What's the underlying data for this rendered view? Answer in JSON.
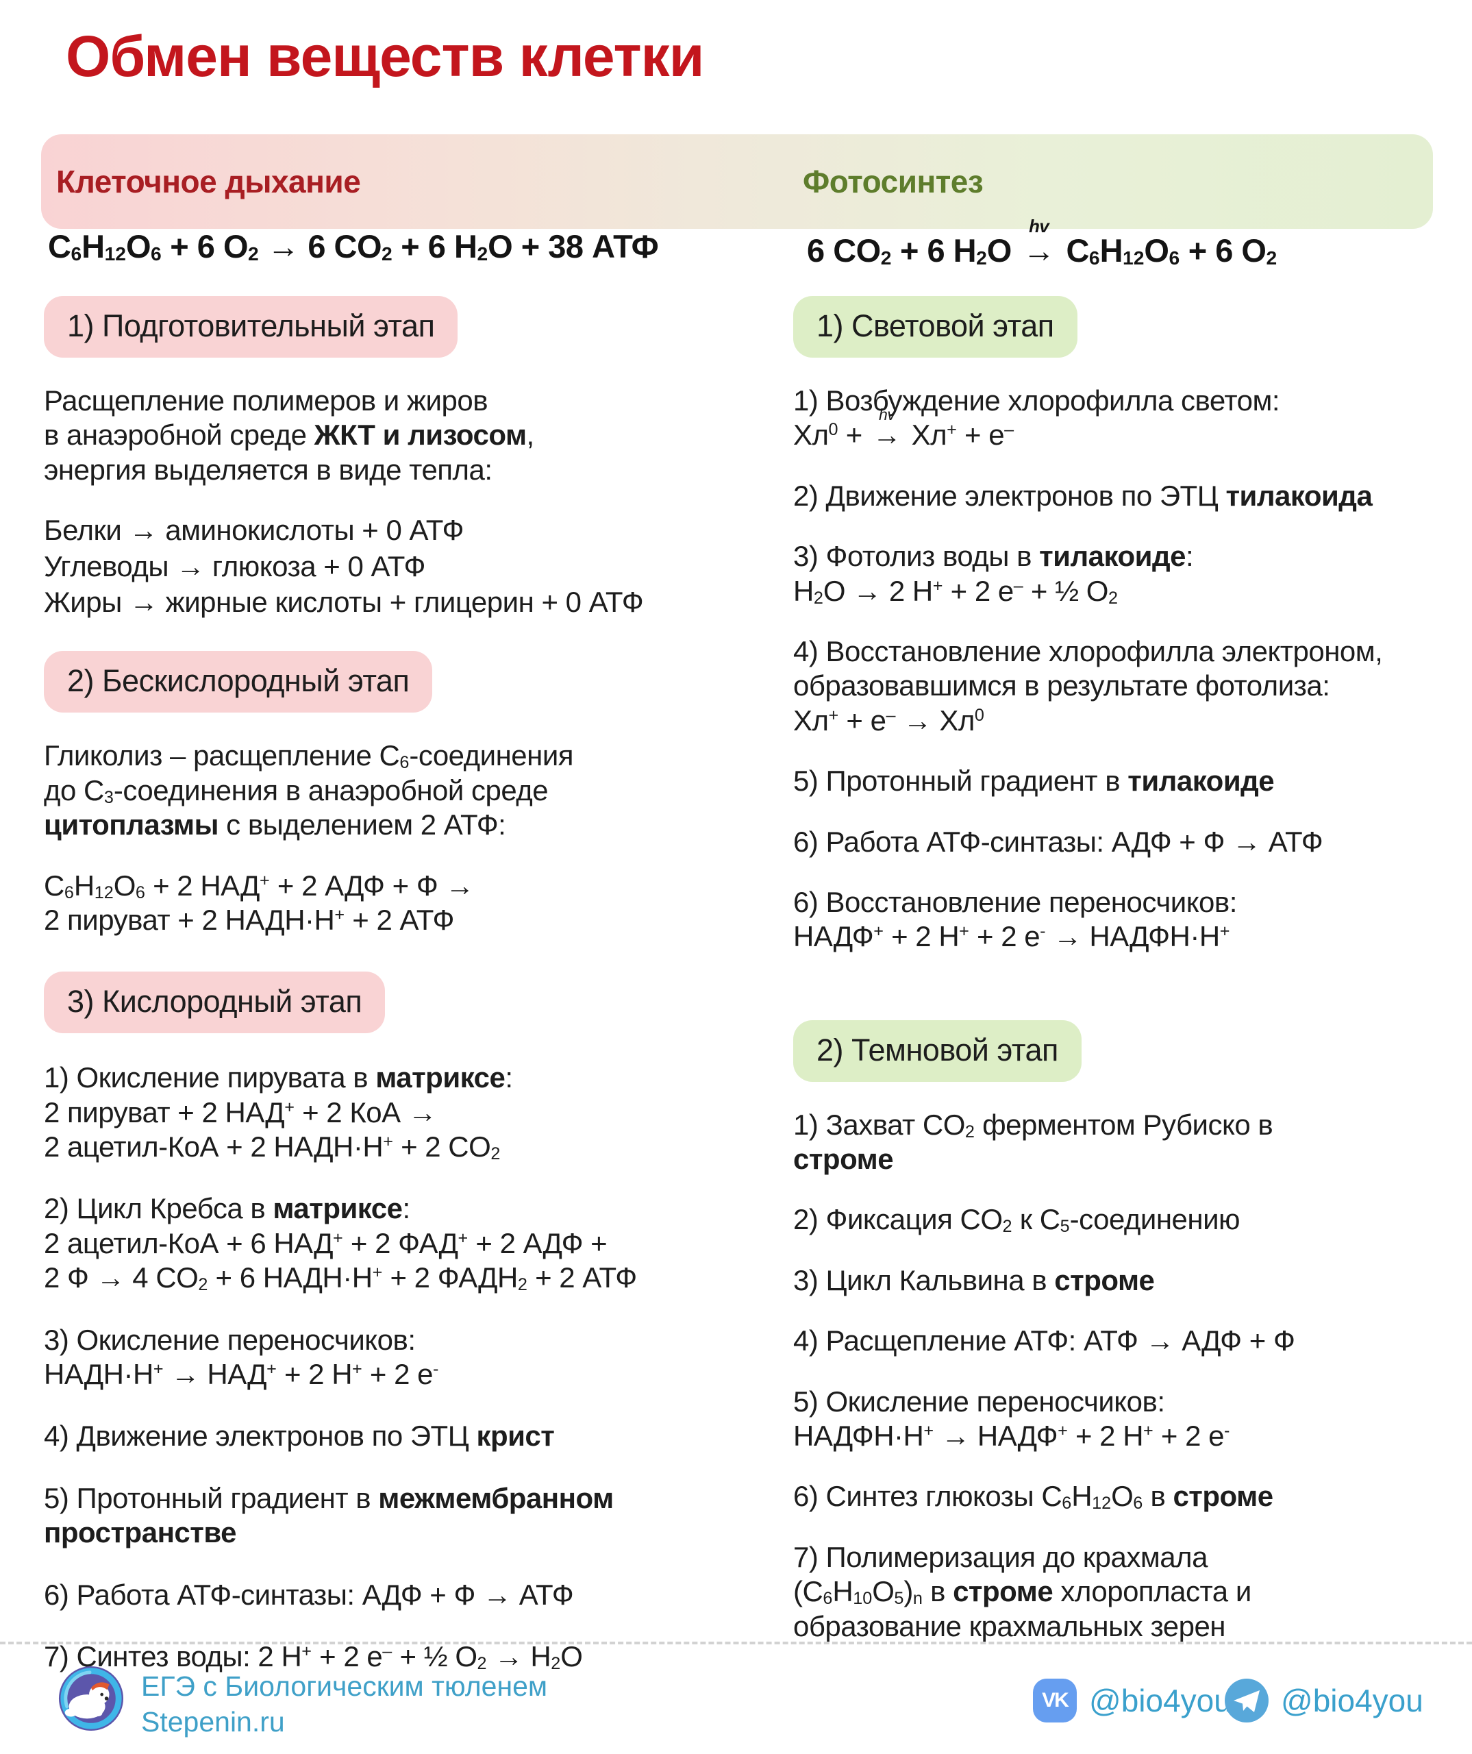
{
  "title": "Обмен веществ клетки",
  "header": {
    "respiration_label": "Клеточное дыхание",
    "photosynthesis_label": "Фотосинтез"
  },
  "respiration": {
    "equation": "C<sub>6</sub>H<sub>12</sub>O<sub>6</sub> + 6 O<sub>2</sub> → 6 CO<sub>2</sub> + 6 H<sub>2</sub>O + 38 АТФ",
    "stages": {
      "prep": {
        "badge": "1) Подготовительный этап",
        "intro": "Расщепление полимеров и жиров<br>в анаэробной среде <b>ЖКТ и лизосом</b>,<br>энергия выделяется в виде тепла:",
        "reactions": [
          "Белки → аминокислоты + 0 АТФ",
          "Углеводы → глюкоза + 0 АТФ",
          "Жиры → жирные кислоты + глицерин + 0 АТФ"
        ]
      },
      "anaerobic": {
        "badge": "2) Бескислородный этап",
        "intro": "Гликолиз – расщепление C<sub>6</sub>-соединения<br>до C<sub>3</sub>-соединения в анаэробной среде<br><b>цитоплазмы</b> с выделением 2 АТФ:",
        "formula": "C<sub>6</sub>H<sub>12</sub>O<sub>6</sub> + 2 НАД<sup>+</sup> + 2 АДФ + Ф →<br>2 пируват + 2 НАДН·Н<sup>+</sup> + 2 АТФ"
      },
      "aerobic": {
        "badge": "3) Кислородный этап",
        "items": [
          "1) Окисление пирувата в <b>матриксе</b>:<br>2 пируват + 2 НАД<sup>+</sup> + 2 КоА →<br>2 ацетил-КоА + 2 НАДН·Н<sup>+</sup> + 2 CO<sub>2</sub>",
          "2) Цикл Кребса в <b>матриксе</b>:<br>2 ацетил-КоА + 6 НАД<sup>+</sup> + 2 ФАД<sup>+</sup> + 2 АДФ +<br>2 Ф → 4 CO<sub>2</sub> + 6 НАДН·Н<sup>+</sup> + 2 ФАДН<sub>2</sub> + 2 АТФ",
          "3) Окисление переносчиков:<br>НАДН·Н<sup>+</sup> → НАД<sup>+</sup> + 2 Н<sup>+</sup> + 2 е<sup>-</sup>",
          "4) Движение электронов по ЭТЦ <b>крист</b>",
          "5) Протонный градиент в <b>межмембранном<br>пространстве</b>",
          "6) Работа АТФ-синтазы: АДФ + Ф → АТФ",
          "7) Синтез воды: 2 Н<sup>+</sup> + 2 е<sup>–</sup> + ½ O<sub>2</sub> → H<sub>2</sub>O"
        ]
      }
    }
  },
  "photosynthesis": {
    "equation": "6 CO<sub>2</sub> + 6 H<sub>2</sub>O <span class='hvar'><i class='hv'>hv</i><span class='ar'>→</span></span> C<sub>6</sub>H<sub>12</sub>O<sub>6</sub> + 6 O<sub>2</sub>",
    "stages": {
      "light": {
        "badge": "1) Световой этап",
        "items": [
          "1) Возбуждение хлорофилла светом:<br>Хл<sup>0</sup> + <span class='hvar'><i class='hv'>hv</i><span class='ar'>→</span></span> Хл<sup>+</sup> + е<sup>–</sup>",
          "2) Движение электронов по ЭТЦ <b>тилакоида</b>",
          "3) Фотолиз воды в <b>тилакоиде</b>:<br>H<sub>2</sub>O → 2 H<sup>+</sup> + 2 e<sup>–</sup> + ½ O<sub>2</sub>",
          "4) Восстановление хлорофилла электроном,<br>образовавшимся в результате фотолиза:<br>Хл<sup>+</sup> + е<sup>–</sup> → Хл<sup>0</sup>",
          "5) Протонный градиент в <b>тилакоиде</b>",
          "6) Работа АТФ-синтазы: АДФ + Ф → АТФ",
          "6) Восстановление переносчиков:<br>НАДФ<sup>+</sup> + 2 Н<sup>+</sup> + 2 е<sup>-</sup> → НАДФН·Н<sup>+</sup>"
        ]
      },
      "dark": {
        "badge": "2) Темновой этап",
        "items": [
          "1) Захват CO<sub>2</sub> ферментом Рубиско в<br><b>строме</b>",
          "2) Фиксация CO<sub>2</sub> к C<sub>5</sub>-соединению",
          "3) Цикл Кальвина в <b>строме</b>",
          "4) Расщепление АТФ: АТФ → АДФ + Ф",
          "5) Окисление переносчиков:<br>НАДФН·Н<sup>+</sup> → НАДФ<sup>+</sup> + 2 Н<sup>+</sup> + 2 е<sup>-</sup>",
          "6) Синтез глюкозы C<sub>6</sub>H<sub>12</sub>O<sub>6</sub> в <b>строме</b>",
          "7) Полимеризация до крахмала<br>(C<sub>6</sub>H<sub>10</sub>O<sub>5</sub>)<sub>n</sub> в <b>строме</b> хлоропласта и<br>образование крахмальных зерен"
        ]
      }
    }
  },
  "footer": {
    "brand_line1": "ЕГЭ с Биологическим тюленем",
    "brand_line2": "Stepenin.ru",
    "vk_handle": "@bio4you",
    "telegram_handle": "@bio4you",
    "icons": [
      "seal-logo",
      "vk-icon",
      "telegram-icon"
    ]
  },
  "colors": {
    "title_red": "#c3161d",
    "respiration_red": "#a81e23",
    "photosynthesis_green": "#5e7d2c",
    "badge_pink": "#f9d3d4",
    "badge_green": "#ddeec6",
    "text": "#1d1d1d",
    "footer_blue": "#3fa0c8",
    "vk_blue": "#669ef0",
    "telegram_blue": "#58a8da",
    "logo_purple": "#5c56ab",
    "logo_cyan": "#3fb6e8"
  }
}
